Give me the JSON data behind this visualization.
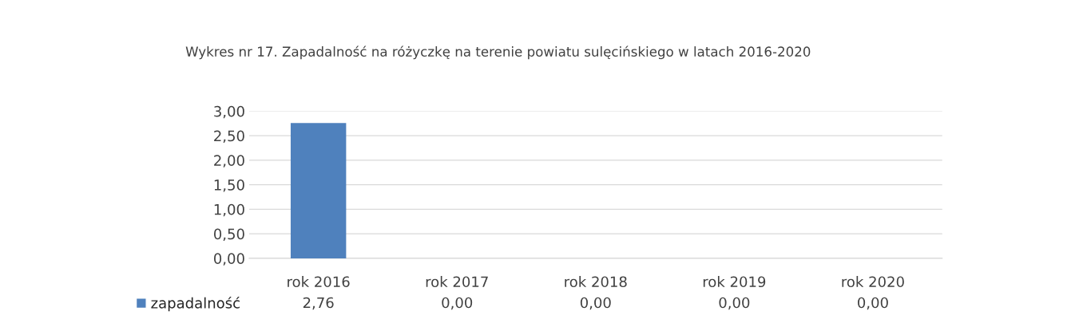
{
  "chart_data": {
    "type": "bar",
    "title": "Wykres nr 17. Zapadalność na różyczkę na terenie powiatu sulęcińskiego w latach 2016-2020",
    "categories": [
      "rok 2016",
      "rok 2017",
      "rok 2018",
      "rok 2019",
      "rok 2020"
    ],
    "series": [
      {
        "name": "zapadalność",
        "color": "#4f81bd",
        "values": [
          2.76,
          0,
          0,
          0,
          0
        ],
        "value_labels": [
          "2,76",
          "0,00",
          "0,00",
          "0,00",
          "0,00"
        ]
      }
    ],
    "ylim": [
      0,
      3
    ],
    "yticks": [
      {
        "value": 0,
        "label": "0,00"
      },
      {
        "value": 0.5,
        "label": "0,50"
      },
      {
        "value": 1,
        "label": "1,00"
      },
      {
        "value": 1.5,
        "label": "1,50"
      },
      {
        "value": 2,
        "label": "2,00"
      },
      {
        "value": 2.5,
        "label": "2,50"
      },
      {
        "value": 3,
        "label": "3,00"
      }
    ],
    "grid": "y",
    "legend": "bottom left"
  }
}
